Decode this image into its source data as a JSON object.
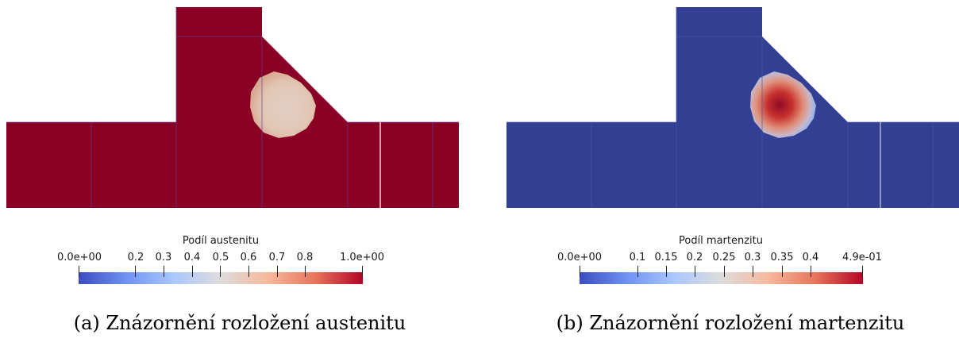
{
  "panels": [
    {
      "id": "a",
      "field": "austenite",
      "colorbar": {
        "title": "Podíl austenitu",
        "min": 0.0,
        "max": 1.0,
        "labels": [
          {
            "value": 0.0,
            "text": "0.0e+00"
          },
          {
            "value": 0.2,
            "text": "0.2"
          },
          {
            "value": 0.3,
            "text": "0.3"
          },
          {
            "value": 0.4,
            "text": "0.4"
          },
          {
            "value": 0.5,
            "text": "0.5"
          },
          {
            "value": 0.6,
            "text": "0.6"
          },
          {
            "value": 0.7,
            "text": "0.7"
          },
          {
            "value": 0.8,
            "text": "0.8"
          },
          {
            "value": 1.0,
            "text": "1.0e+00"
          }
        ]
      },
      "caption": "(a) Znázornění rozložení austenitu",
      "background_color": "#8a0024",
      "blob_colors": [
        "#e1c6b4",
        "#d9aa93",
        "#e2cfc5"
      ]
    },
    {
      "id": "b",
      "field": "martensite",
      "colorbar": {
        "title": "Podíl martenzitu",
        "min": 0.0,
        "max": 0.49,
        "labels": [
          {
            "value": 0.0,
            "text": "0.0e+00"
          },
          {
            "value": 0.1,
            "text": "0.1"
          },
          {
            "value": 0.15,
            "text": "0.15"
          },
          {
            "value": 0.2,
            "text": "0.2"
          },
          {
            "value": 0.25,
            "text": "0.25"
          },
          {
            "value": 0.3,
            "text": "0.3"
          },
          {
            "value": 0.35,
            "text": "0.35"
          },
          {
            "value": 0.4,
            "text": "0.4"
          },
          {
            "value": 0.49,
            "text": "4.9e-01"
          }
        ]
      },
      "caption": "(b) Znázornění rozložení martenzitu",
      "background_color": "#323f93",
      "blob_colors": [
        "#8fb4ef",
        "#e0907a",
        "#8f0b24"
      ]
    }
  ],
  "colormap": [
    "#3b4cc0",
    "#6f92f3",
    "#aac7fd",
    "#dddcdc",
    "#f7b89c",
    "#e7745b",
    "#b40426"
  ]
}
